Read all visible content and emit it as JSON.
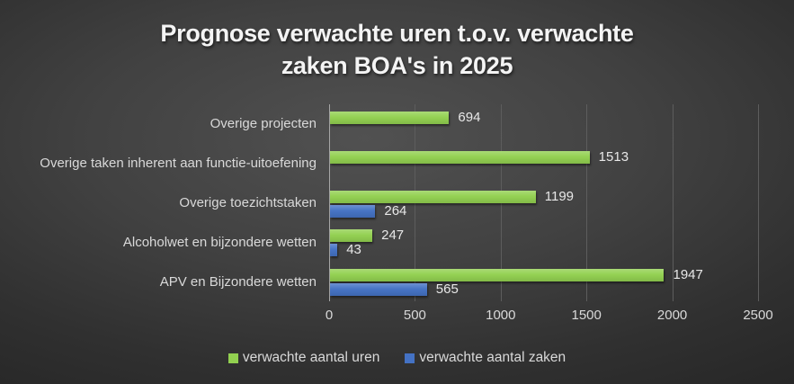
{
  "title_lines": [
    "Prognose verwachte uren t.o.v. verwachte",
    "zaken BOA's in 2025"
  ],
  "chart_data": {
    "type": "bar",
    "orientation": "horizontal",
    "title": "Prognose verwachte uren t.o.v. verwachte zaken BOA's in 2025",
    "categories": [
      "Overige projecten",
      "Overige taken inherent aan functie-uitoefening",
      "Overige toezichtstaken",
      "Alcoholwet en bijzondere wetten",
      "APV en Bijzondere wetten"
    ],
    "series": [
      {
        "name": "verwachte aantal uren",
        "color": "#92d050",
        "values": [
          694,
          1513,
          1199,
          247,
          1947
        ]
      },
      {
        "name": "verwachte aantal zaken",
        "color": "#4472c4",
        "values": [
          null,
          null,
          264,
          43,
          565
        ]
      }
    ],
    "xlim": [
      0,
      2500
    ],
    "x_ticks": [
      0,
      500,
      1000,
      1500,
      2000,
      2500
    ],
    "grid": true,
    "data_labels": true,
    "legend_position": "bottom"
  },
  "colors": {
    "background_center": "#515151",
    "background_edge": "#232323",
    "title_text": "#f4f4f4",
    "label_text": "#d9d9d9",
    "data_label_text": "#e8e8e8",
    "gridline": "#5d5d5d",
    "axis_line": "#a6a6a6",
    "series_uren": "#92d050",
    "series_zaken": "#4472c4"
  }
}
